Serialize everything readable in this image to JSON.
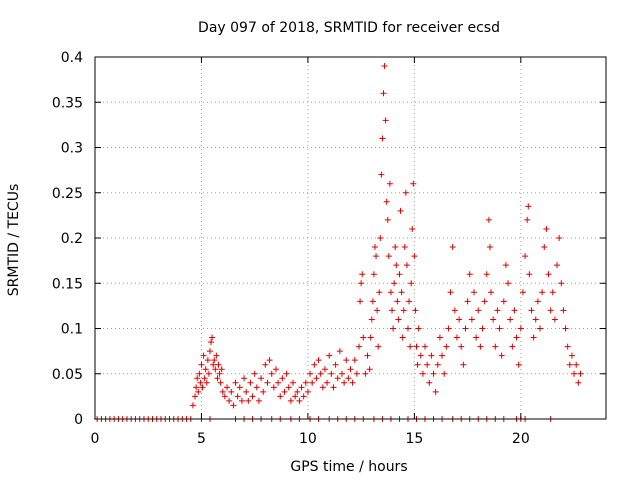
{
  "chart_data": {
    "type": "scatter",
    "title": "Day 097 of 2018, SRMTID for receiver ecsd",
    "xlabel": "GPS time / hours",
    "ylabel": "SRMTID / TECUs",
    "xlim": [
      0,
      24
    ],
    "ylim": [
      0,
      0.4
    ],
    "grid": true,
    "marker": "+",
    "marker_color": "#e00000",
    "x_ticks": [
      0,
      5,
      10,
      15,
      20
    ],
    "x_tick_labels": [
      "0",
      "5",
      "10",
      "15",
      "20"
    ],
    "y_ticks": [
      0,
      0.05,
      0.1,
      0.15,
      0.2,
      0.25,
      0.3,
      0.35,
      0.4
    ],
    "y_tick_labels": [
      "0",
      "0.05",
      "0.1",
      "0.15",
      "0.2",
      "0.25",
      "0.3",
      "0.35",
      "0.4"
    ],
    "series": [
      {
        "name": "SRMTID",
        "points": [
          [
            0.1,
            0
          ],
          [
            0.3,
            0
          ],
          [
            0.5,
            0
          ],
          [
            0.7,
            0
          ],
          [
            0.9,
            0
          ],
          [
            1.1,
            0
          ],
          [
            1.3,
            0
          ],
          [
            1.5,
            0
          ],
          [
            1.7,
            0
          ],
          [
            1.9,
            0
          ],
          [
            2.1,
            0
          ],
          [
            2.3,
            0
          ],
          [
            2.5,
            0
          ],
          [
            2.7,
            0
          ],
          [
            2.9,
            0
          ],
          [
            3.1,
            0
          ],
          [
            3.3,
            0
          ],
          [
            3.5,
            0
          ],
          [
            3.7,
            0
          ],
          [
            3.9,
            0
          ],
          [
            4.1,
            0
          ],
          [
            4.3,
            0
          ],
          [
            4.5,
            0
          ],
          [
            5.0,
            0
          ],
          [
            5.4,
            0
          ],
          [
            6.6,
            0
          ],
          [
            7.0,
            0
          ],
          [
            7.4,
            0
          ],
          [
            7.8,
            0
          ],
          [
            8.3,
            0
          ],
          [
            8.7,
            0
          ],
          [
            9.2,
            0
          ],
          [
            9.6,
            0
          ],
          [
            10.1,
            0
          ],
          [
            10.5,
            0
          ],
          [
            11.0,
            0
          ],
          [
            11.4,
            0
          ],
          [
            11.8,
            0
          ],
          [
            12.2,
            0
          ],
          [
            12.6,
            0
          ],
          [
            13.1,
            0
          ],
          [
            13.5,
            0
          ],
          [
            13.9,
            0
          ],
          [
            14.3,
            0
          ],
          [
            14.7,
            0
          ],
          [
            15.1,
            0
          ],
          [
            15.5,
            0
          ],
          [
            15.9,
            0
          ],
          [
            16.3,
            0
          ],
          [
            16.8,
            0
          ],
          [
            17.2,
            0
          ],
          [
            17.6,
            0
          ],
          [
            18.0,
            0
          ],
          [
            18.4,
            0
          ],
          [
            18.8,
            0
          ],
          [
            19.2,
            0
          ],
          [
            19.8,
            0
          ],
          [
            20.0,
            0
          ],
          [
            20.2,
            0
          ],
          [
            21.4,
            0
          ],
          [
            4.6,
            0.015
          ],
          [
            4.7,
            0.025
          ],
          [
            4.75,
            0.035
          ],
          [
            4.8,
            0.045
          ],
          [
            4.85,
            0.03
          ],
          [
            4.9,
            0.05
          ],
          [
            4.95,
            0.04
          ],
          [
            5.0,
            0.06
          ],
          [
            5.05,
            0.035
          ],
          [
            5.1,
            0.07
          ],
          [
            5.15,
            0.045
          ],
          [
            5.2,
            0.055
          ],
          [
            5.25,
            0.04
          ],
          [
            5.3,
            0.065
          ],
          [
            5.35,
            0.05
          ],
          [
            5.4,
            0.075
          ],
          [
            5.45,
            0.085
          ],
          [
            5.5,
            0.09
          ],
          [
            5.55,
            0.06
          ],
          [
            5.6,
            0.065
          ],
          [
            5.65,
            0.055
          ],
          [
            5.7,
            0.07
          ],
          [
            5.75,
            0.045
          ],
          [
            5.8,
            0.06
          ],
          [
            5.85,
            0.05
          ],
          [
            5.9,
            0.04
          ],
          [
            5.95,
            0.055
          ],
          [
            6.0,
            0.03
          ],
          [
            6.1,
            0.025
          ],
          [
            6.2,
            0.035
          ],
          [
            6.3,
            0.02
          ],
          [
            6.4,
            0.03
          ],
          [
            6.5,
            0.015
          ],
          [
            6.6,
            0.04
          ],
          [
            6.7,
            0.025
          ],
          [
            6.8,
            0.035
          ],
          [
            6.9,
            0.02
          ],
          [
            7.0,
            0.045
          ],
          [
            7.1,
            0.03
          ],
          [
            7.2,
            0.02
          ],
          [
            7.3,
            0.04
          ],
          [
            7.4,
            0.025
          ],
          [
            7.5,
            0.05
          ],
          [
            7.6,
            0.035
          ],
          [
            7.7,
            0.02
          ],
          [
            7.8,
            0.045
          ],
          [
            7.9,
            0.03
          ],
          [
            8.0,
            0.06
          ],
          [
            8.1,
            0.04
          ],
          [
            8.2,
            0.065
          ],
          [
            8.3,
            0.05
          ],
          [
            8.4,
            0.035
          ],
          [
            8.5,
            0.055
          ],
          [
            8.6,
            0.04
          ],
          [
            8.7,
            0.025
          ],
          [
            8.8,
            0.045
          ],
          [
            8.9,
            0.03
          ],
          [
            9.0,
            0.05
          ],
          [
            9.1,
            0.035
          ],
          [
            9.2,
            0.02
          ],
          [
            9.3,
            0.04
          ],
          [
            9.4,
            0.025
          ],
          [
            9.5,
            0.03
          ],
          [
            9.6,
            0.02
          ],
          [
            9.7,
            0.035
          ],
          [
            9.8,
            0.025
          ],
          [
            9.9,
            0.04
          ],
          [
            10.0,
            0.03
          ],
          [
            10.1,
            0.05
          ],
          [
            10.2,
            0.04
          ],
          [
            10.3,
            0.06
          ],
          [
            10.4,
            0.045
          ],
          [
            10.5,
            0.065
          ],
          [
            10.6,
            0.05
          ],
          [
            10.7,
            0.035
          ],
          [
            10.8,
            0.055
          ],
          [
            10.9,
            0.04
          ],
          [
            11.0,
            0.07
          ],
          [
            11.1,
            0.05
          ],
          [
            11.2,
            0.035
          ],
          [
            11.3,
            0.06
          ],
          [
            11.4,
            0.045
          ],
          [
            11.5,
            0.075
          ],
          [
            11.6,
            0.05
          ],
          [
            11.7,
            0.04
          ],
          [
            11.8,
            0.065
          ],
          [
            11.9,
            0.045
          ],
          [
            12.0,
            0.055
          ],
          [
            12.1,
            0.04
          ],
          [
            12.2,
            0.065
          ],
          [
            12.3,
            0.05
          ],
          [
            12.4,
            0.08
          ],
          [
            12.45,
            0.13
          ],
          [
            12.5,
            0.15
          ],
          [
            12.55,
            0.16
          ],
          [
            12.6,
            0.09
          ],
          [
            12.7,
            0.05
          ],
          [
            12.8,
            0.07
          ],
          [
            12.9,
            0.055
          ],
          [
            12.95,
            0.09
          ],
          [
            13.0,
            0.11
          ],
          [
            13.05,
            0.13
          ],
          [
            13.1,
            0.16
          ],
          [
            13.15,
            0.19
          ],
          [
            13.2,
            0.18
          ],
          [
            13.25,
            0.12
          ],
          [
            13.3,
            0.08
          ],
          [
            13.35,
            0.14
          ],
          [
            13.4,
            0.2
          ],
          [
            13.45,
            0.27
          ],
          [
            13.5,
            0.31
          ],
          [
            13.55,
            0.36
          ],
          [
            13.6,
            0.39
          ],
          [
            13.65,
            0.33
          ],
          [
            13.7,
            0.24
          ],
          [
            13.75,
            0.22
          ],
          [
            13.8,
            0.18
          ],
          [
            13.85,
            0.26
          ],
          [
            13.9,
            0.14
          ],
          [
            13.95,
            0.12
          ],
          [
            14.0,
            0.1
          ],
          [
            14.05,
            0.15
          ],
          [
            14.1,
            0.19
          ],
          [
            14.15,
            0.17
          ],
          [
            14.2,
            0.13
          ],
          [
            14.25,
            0.11
          ],
          [
            14.3,
            0.16
          ],
          [
            14.35,
            0.23
          ],
          [
            14.4,
            0.14
          ],
          [
            14.45,
            0.09
          ],
          [
            14.5,
            0.12
          ],
          [
            14.55,
            0.19
          ],
          [
            14.6,
            0.25
          ],
          [
            14.65,
            0.17
          ],
          [
            14.7,
            0.1
          ],
          [
            14.75,
            0.13
          ],
          [
            14.8,
            0.08
          ],
          [
            14.85,
            0.15
          ],
          [
            14.9,
            0.21
          ],
          [
            14.95,
            0.26
          ],
          [
            15.0,
            0.18
          ],
          [
            15.05,
            0.12
          ],
          [
            15.1,
            0.08
          ],
          [
            15.15,
            0.06
          ],
          [
            15.2,
            0.1
          ],
          [
            15.3,
            0.07
          ],
          [
            15.4,
            0.05
          ],
          [
            15.5,
            0.08
          ],
          [
            15.6,
            0.06
          ],
          [
            15.7,
            0.04
          ],
          [
            15.8,
            0.07
          ],
          [
            15.9,
            0.05
          ],
          [
            16.0,
            0.03
          ],
          [
            16.1,
            0.06
          ],
          [
            16.2,
            0.09
          ],
          [
            16.3,
            0.07
          ],
          [
            16.4,
            0.05
          ],
          [
            16.5,
            0.08
          ],
          [
            16.6,
            0.1
          ],
          [
            16.7,
            0.14
          ],
          [
            16.8,
            0.19
          ],
          [
            16.9,
            0.12
          ],
          [
            17.0,
            0.09
          ],
          [
            17.1,
            0.11
          ],
          [
            17.2,
            0.08
          ],
          [
            17.3,
            0.06
          ],
          [
            17.4,
            0.1
          ],
          [
            17.5,
            0.13
          ],
          [
            17.6,
            0.16
          ],
          [
            17.7,
            0.11
          ],
          [
            17.8,
            0.14
          ],
          [
            17.9,
            0.09
          ],
          [
            18.0,
            0.12
          ],
          [
            18.1,
            0.08
          ],
          [
            18.2,
            0.1
          ],
          [
            18.3,
            0.13
          ],
          [
            18.4,
            0.16
          ],
          [
            18.5,
            0.22
          ],
          [
            18.55,
            0.19
          ],
          [
            18.6,
            0.14
          ],
          [
            18.7,
            0.11
          ],
          [
            18.8,
            0.08
          ],
          [
            18.9,
            0.12
          ],
          [
            19.0,
            0.1
          ],
          [
            19.1,
            0.07
          ],
          [
            19.2,
            0.13
          ],
          [
            19.3,
            0.17
          ],
          [
            19.4,
            0.15
          ],
          [
            19.5,
            0.11
          ],
          [
            19.6,
            0.08
          ],
          [
            19.7,
            0.12
          ],
          [
            19.8,
            0.09
          ],
          [
            19.9,
            0.06
          ],
          [
            20.0,
            0.1
          ],
          [
            20.1,
            0.14
          ],
          [
            20.2,
            0.18
          ],
          [
            20.3,
            0.22
          ],
          [
            20.35,
            0.235
          ],
          [
            20.4,
            0.16
          ],
          [
            20.5,
            0.12
          ],
          [
            20.6,
            0.09
          ],
          [
            20.7,
            0.11
          ],
          [
            20.8,
            0.13
          ],
          [
            20.9,
            0.1
          ],
          [
            21.0,
            0.14
          ],
          [
            21.1,
            0.19
          ],
          [
            21.2,
            0.21
          ],
          [
            21.3,
            0.16
          ],
          [
            21.4,
            0.12
          ],
          [
            21.5,
            0.14
          ],
          [
            21.6,
            0.11
          ],
          [
            21.7,
            0.17
          ],
          [
            21.8,
            0.2
          ],
          [
            21.9,
            0.15
          ],
          [
            22.0,
            0.12
          ],
          [
            22.1,
            0.1
          ],
          [
            22.2,
            0.08
          ],
          [
            22.3,
            0.06
          ],
          [
            22.4,
            0.07
          ],
          [
            22.5,
            0.05
          ],
          [
            22.6,
            0.06
          ],
          [
            22.7,
            0.04
          ],
          [
            22.8,
            0.05
          ]
        ]
      }
    ]
  }
}
